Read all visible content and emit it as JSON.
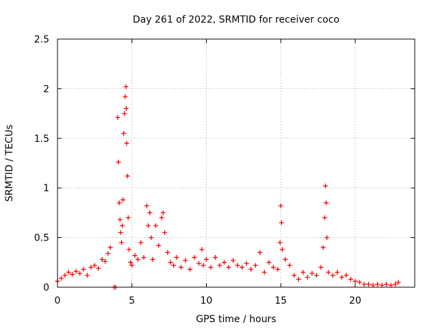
{
  "chart_data": {
    "type": "scatter",
    "title": "Day 261 of 2022, SRMTID for receiver coco",
    "xlabel": "GPS time / hours",
    "ylabel": "SRMTID / TECUs",
    "xlim": [
      0,
      24
    ],
    "ylim": [
      0,
      2.5
    ],
    "xticks": [
      0,
      5,
      10,
      15,
      20
    ],
    "yticks": [
      0,
      0.5,
      1,
      1.5,
      2,
      2.5
    ],
    "xtick_labels": [
      "0",
      "5",
      "10",
      "15",
      "20"
    ],
    "ytick_labels": [
      "0",
      "0.5",
      "1",
      "1.5",
      "2",
      "2.5"
    ],
    "grid": true,
    "marker": "plus",
    "series": [
      {
        "name": "SRMTID",
        "color": "#ff0000",
        "x": [
          0.0,
          0.25,
          0.5,
          0.75,
          1.0,
          1.25,
          1.5,
          1.75,
          2.0,
          2.25,
          2.5,
          2.75,
          3.0,
          3.2,
          3.4,
          3.55,
          3.8,
          3.9,
          4.05,
          4.1,
          4.15,
          4.2,
          4.25,
          4.3,
          4.35,
          4.4,
          4.45,
          4.5,
          4.55,
          4.6,
          4.62,
          4.65,
          4.7,
          4.75,
          4.8,
          4.9,
          5.0,
          5.2,
          5.4,
          5.6,
          5.8,
          6.0,
          6.1,
          6.2,
          6.3,
          6.4,
          6.6,
          6.8,
          7.0,
          7.1,
          7.2,
          7.4,
          7.6,
          7.8,
          8.0,
          8.3,
          8.6,
          8.9,
          9.2,
          9.5,
          9.7,
          9.8,
          10.0,
          10.3,
          10.6,
          10.9,
          11.2,
          11.5,
          11.8,
          12.1,
          12.4,
          12.7,
          13.0,
          13.3,
          13.6,
          13.9,
          14.2,
          14.5,
          14.8,
          14.95,
          15.0,
          15.05,
          15.1,
          15.3,
          15.6,
          15.9,
          16.2,
          16.5,
          16.8,
          17.1,
          17.4,
          17.7,
          17.85,
          17.95,
          18.0,
          18.05,
          18.1,
          18.2,
          18.5,
          18.8,
          19.1,
          19.4,
          19.7,
          20.0,
          20.3,
          20.6,
          20.9,
          21.2,
          21.5,
          21.8,
          22.1,
          22.4,
          22.7,
          22.9
        ],
        "y": [
          0.06,
          0.09,
          0.12,
          0.15,
          0.13,
          0.16,
          0.14,
          0.18,
          0.12,
          0.2,
          0.22,
          0.19,
          0.28,
          0.26,
          0.34,
          0.4,
          0.0,
          0.0,
          1.71,
          1.26,
          0.85,
          0.68,
          0.55,
          0.45,
          0.62,
          0.88,
          1.55,
          1.75,
          1.92,
          2.02,
          1.8,
          1.45,
          1.12,
          0.7,
          0.38,
          0.25,
          0.22,
          0.32,
          0.28,
          0.45,
          0.3,
          0.82,
          0.62,
          0.75,
          0.5,
          0.28,
          0.62,
          0.42,
          0.7,
          0.75,
          0.55,
          0.35,
          0.25,
          0.22,
          0.3,
          0.2,
          0.27,
          0.18,
          0.3,
          0.24,
          0.38,
          0.22,
          0.28,
          0.2,
          0.3,
          0.22,
          0.25,
          0.2,
          0.27,
          0.22,
          0.2,
          0.24,
          0.18,
          0.22,
          0.35,
          0.15,
          0.25,
          0.2,
          0.18,
          0.45,
          0.82,
          0.65,
          0.38,
          0.28,
          0.22,
          0.12,
          0.08,
          0.15,
          0.1,
          0.14,
          0.12,
          0.2,
          0.4,
          0.7,
          1.02,
          0.85,
          0.5,
          0.15,
          0.12,
          0.15,
          0.1,
          0.12,
          0.08,
          0.06,
          0.05,
          0.03,
          0.03,
          0.02,
          0.03,
          0.02,
          0.03,
          0.02,
          0.03,
          0.05
        ]
      }
    ]
  }
}
